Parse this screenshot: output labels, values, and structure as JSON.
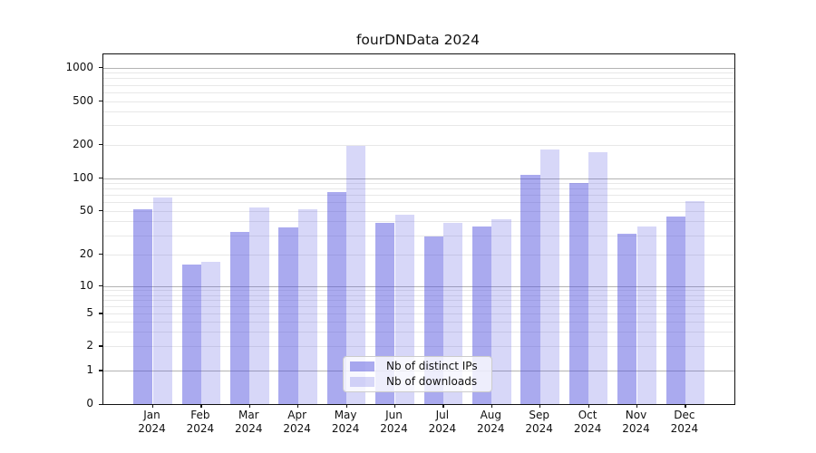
{
  "chart_data": {
    "type": "bar",
    "title": "fourDNData 2024",
    "categories": [
      "Jan",
      "Feb",
      "Mar",
      "Apr",
      "May",
      "Jun",
      "Jul",
      "Aug",
      "Sep",
      "Oct",
      "Nov",
      "Dec"
    ],
    "year": "2024",
    "series": [
      {
        "name": "Nb of distinct IPs",
        "color": "rgba(75,75,221,0.47)",
        "values": [
          52,
          16,
          32,
          35,
          75,
          39,
          29,
          36,
          108,
          91,
          31,
          44
        ]
      },
      {
        "name": "Nb of downloads",
        "color": "rgba(75,75,221,0.22)",
        "values": [
          66,
          17,
          54,
          52,
          194,
          46,
          39,
          42,
          180,
          171,
          36,
          62
        ]
      }
    ],
    "xlabel": "",
    "ylabel": "",
    "y_axis": {
      "scale": "symlog",
      "ylim": [
        0,
        1350
      ],
      "tick_labels": [
        1000,
        500,
        200,
        100,
        50,
        20,
        10,
        5,
        2,
        1,
        0
      ],
      "major_gridlines": [
        1,
        10,
        100,
        1000
      ],
      "minor_gridlines": [
        2,
        3,
        4,
        5,
        6,
        7,
        8,
        9,
        20,
        30,
        40,
        50,
        60,
        70,
        80,
        90,
        200,
        300,
        400,
        500,
        600,
        700,
        800,
        900
      ],
      "anchors": [
        [
          0,
          0
        ],
        [
          1,
          0.096
        ],
        [
          2,
          0.166
        ],
        [
          5,
          0.2594
        ],
        [
          10,
          0.3372
        ],
        [
          20,
          0.428
        ],
        [
          50,
          0.5525
        ],
        [
          100,
          0.6459
        ],
        [
          200,
          0.7419
        ],
        [
          500,
          0.8664
        ],
        [
          1000,
          0.9624
        ]
      ]
    },
    "legend": {
      "position": "lower center"
    },
    "grid": "horizontal only"
  },
  "colors": {
    "bar_distinct_ips": "rgba(75,75,221,0.47)",
    "bar_downloads": "rgba(75,75,221,0.22)",
    "grid_major": "#b3b3b3",
    "grid_minor": "#e8e8e8",
    "spine": "#111111",
    "text": "#111111"
  }
}
